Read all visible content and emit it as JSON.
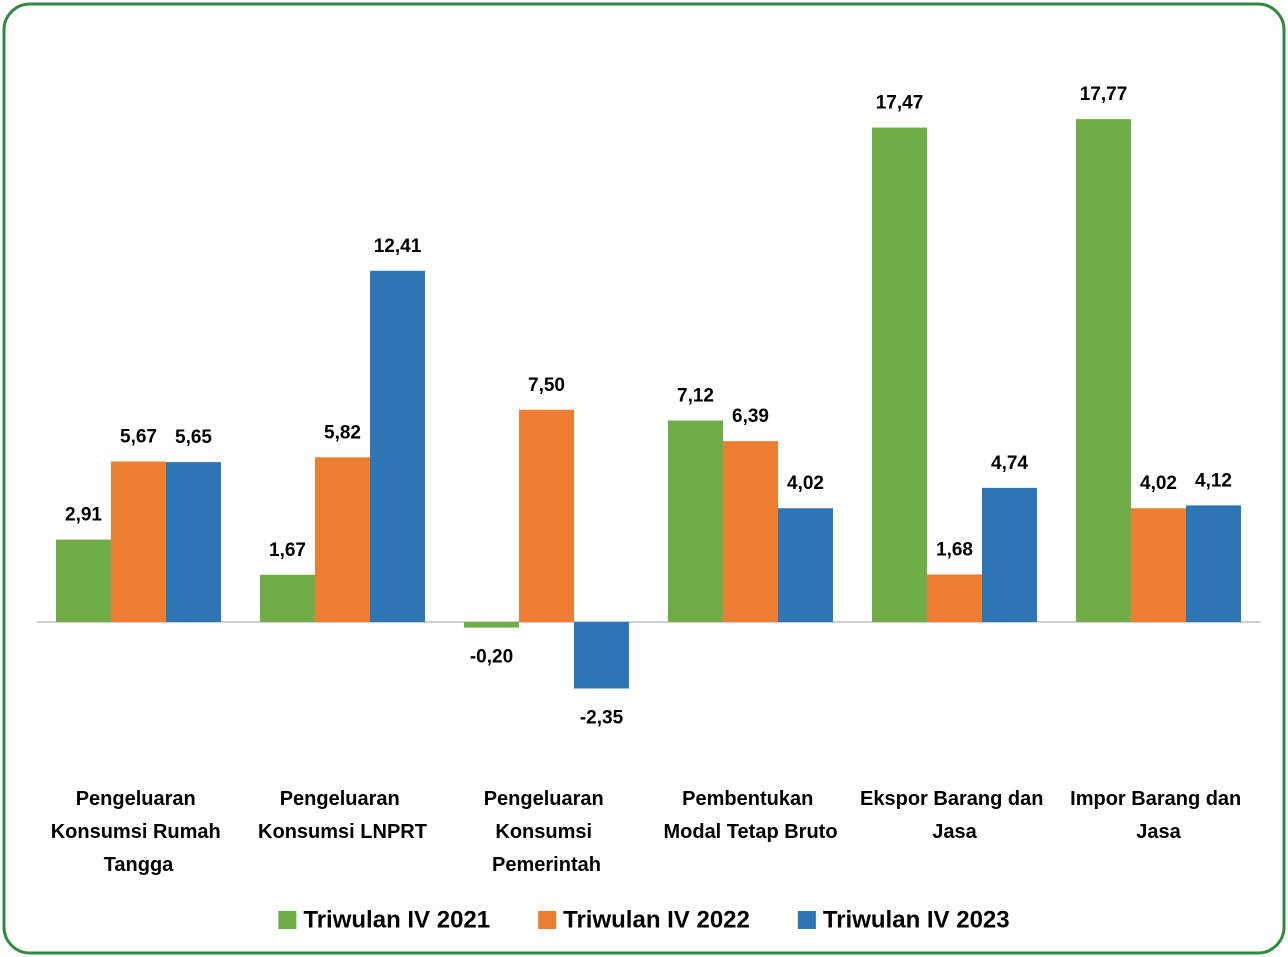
{
  "chart_data": {
    "type": "bar",
    "categories": [
      "Pengeluaran Konsumsi Rumah Tangga",
      "Pengeluaran Konsumsi LNPRT",
      "Pengeluaran Konsumsi Pemerintah",
      "Pembentukan Modal Tetap Bruto",
      "Ekspor Barang dan Jasa",
      "Impor Barang dan Jasa"
    ],
    "series": [
      {
        "name": "Triwulan IV 2021",
        "color": "#70ad47",
        "values": [
          2.91,
          1.67,
          -0.2,
          7.12,
          17.47,
          17.77
        ],
        "value_labels": [
          "2,91",
          "1,67",
          "-0,20",
          "7,12",
          "17,47",
          "17,77"
        ]
      },
      {
        "name": "Triwulan IV 2022",
        "color": "#ed7d31",
        "values": [
          5.67,
          5.82,
          7.5,
          6.39,
          1.68,
          4.02
        ],
        "value_labels": [
          "5,67",
          "5,82",
          "7,50",
          "6,39",
          "1,68",
          "4,02"
        ]
      },
      {
        "name": "Triwulan IV 2023",
        "color": "#2e75b6",
        "values": [
          5.65,
          12.41,
          -2.35,
          4.02,
          4.74,
          4.12
        ],
        "value_labels": [
          "5,65",
          "12,41",
          "-2,35",
          "4,02",
          "4,74",
          "4,12"
        ]
      }
    ],
    "ylim": [
      -5,
      20
    ]
  }
}
